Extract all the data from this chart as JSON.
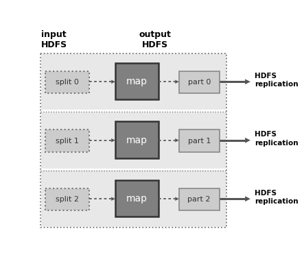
{
  "title_input": "input\nHDFS",
  "title_output": "output\nHDFS",
  "rows": [
    {
      "split_label": "split 0",
      "part_label": "part 0"
    },
    {
      "split_label": "split 1",
      "part_label": "part 1"
    },
    {
      "split_label": "split 2",
      "part_label": "part 2"
    }
  ],
  "map_label": "map",
  "hdfs_label": "HDFS\nreplication",
  "bg_color": "#ffffff",
  "row_bg": "#e8e8e8",
  "split_fill": "#cccccc",
  "map_fill": "#808080",
  "map_border": "#333333",
  "part_fill": "#cccccc",
  "part_border": "#888888",
  "arrow_color": "#555555",
  "text_color": "#333333",
  "dashed_color": "#777777",
  "fig_w": 4.43,
  "fig_h": 3.78,
  "dpi": 100
}
